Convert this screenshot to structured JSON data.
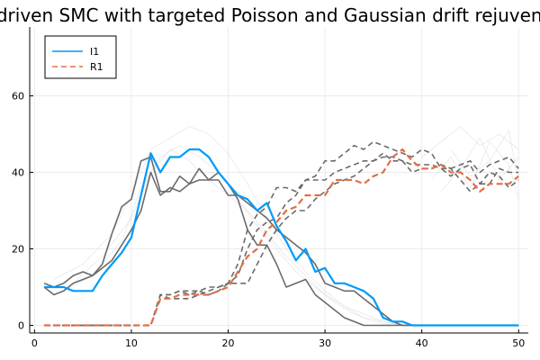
{
  "chart_data": {
    "type": "line",
    "title": "Data-driven SMC with targeted Poisson and Gaussian drift rejuvenation",
    "xlabel": "",
    "ylabel": "",
    "xlim": [
      -0.5,
      51
    ],
    "ylim": [
      -2,
      78
    ],
    "x_ticks": [
      0,
      10,
      20,
      30,
      40,
      50
    ],
    "y_ticks": [
      0,
      20,
      40,
      60
    ],
    "grid": true,
    "legend_position": "top-left",
    "colors": {
      "I1": "#009af9",
      "R1": "#e26f46",
      "samples": "#6b6b6b",
      "faint": "#d9d9d9",
      "grid": "#ebebeb",
      "axis": "#000000"
    },
    "series": [
      {
        "name": "I1",
        "style": "solid",
        "x": [
          1,
          2,
          3,
          4,
          5,
          6,
          7,
          8,
          9,
          10,
          11,
          12,
          13,
          14,
          15,
          16,
          17,
          18,
          19,
          20,
          21,
          22,
          23,
          24,
          25,
          26,
          27,
          28,
          29,
          30,
          31,
          32,
          33,
          34,
          35,
          36,
          37,
          38,
          39,
          40,
          41,
          42,
          43,
          44,
          45,
          46,
          47,
          48,
          49,
          50
        ],
        "values": [
          10,
          10,
          10,
          9,
          9,
          9,
          13,
          16,
          19,
          23,
          34,
          45,
          40,
          44,
          44,
          46,
          46,
          44,
          40,
          37,
          34,
          33,
          30,
          32,
          26,
          22,
          17,
          20,
          14,
          15,
          11,
          11,
          10,
          9,
          7,
          2,
          1,
          1,
          0,
          0,
          0,
          0,
          0,
          0,
          0,
          0,
          0,
          0,
          0,
          0
        ]
      },
      {
        "name": "R1",
        "style": "dashed",
        "x": [
          1,
          2,
          3,
          4,
          5,
          6,
          7,
          8,
          9,
          10,
          11,
          12,
          13,
          14,
          15,
          16,
          17,
          18,
          19,
          20,
          21,
          22,
          23,
          24,
          25,
          26,
          27,
          28,
          29,
          30,
          31,
          32,
          33,
          34,
          35,
          36,
          37,
          38,
          39,
          40,
          41,
          42,
          43,
          44,
          45,
          46,
          47,
          48,
          49,
          50
        ],
        "values": [
          0,
          0,
          0,
          0,
          0,
          0,
          0,
          0,
          0,
          0,
          0,
          0,
          7,
          7,
          8,
          8,
          8,
          8,
          9,
          10,
          14,
          18,
          20,
          25,
          27,
          30,
          31,
          34,
          34,
          34,
          38,
          38,
          38,
          37,
          39,
          40,
          44,
          46,
          43,
          41,
          41,
          42,
          40,
          40,
          38,
          35,
          37,
          37,
          37,
          39
        ]
      }
    ],
    "sample_traces": [
      {
        "style": "solid",
        "x": [
          1,
          2,
          3,
          4,
          5,
          6,
          7,
          8,
          9,
          10,
          11,
          12,
          13,
          14,
          15,
          16,
          17,
          18,
          19,
          20,
          21,
          22,
          23,
          24,
          25,
          26,
          27,
          28,
          29,
          30,
          31,
          32,
          33,
          34,
          35,
          36,
          37,
          38,
          39,
          40,
          41,
          42,
          43,
          44,
          45,
          46,
          47,
          48,
          49,
          50
        ],
        "values": [
          11,
          10,
          11,
          13,
          14,
          13,
          16,
          24,
          31,
          33,
          43,
          44,
          35,
          35,
          39,
          37,
          38,
          38,
          40,
          37,
          33,
          25,
          21,
          21,
          16,
          10,
          11,
          12,
          8,
          6,
          4,
          2,
          1,
          0,
          0,
          0,
          0,
          0,
          0,
          0,
          0,
          0,
          0,
          0,
          0,
          0,
          0,
          0,
          0,
          0
        ]
      },
      {
        "style": "solid",
        "x": [
          1,
          2,
          3,
          4,
          5,
          6,
          7,
          8,
          9,
          10,
          11,
          12,
          13,
          14,
          15,
          16,
          17,
          18,
          19,
          20,
          21,
          22,
          23,
          24,
          25,
          26,
          27,
          28,
          29,
          30,
          31,
          32,
          33,
          34,
          35,
          36,
          37,
          38,
          39,
          40,
          41,
          42,
          43,
          44,
          45,
          46,
          47,
          48,
          49,
          50
        ],
        "values": [
          10,
          8,
          9,
          11,
          12,
          13,
          15,
          17,
          21,
          25,
          30,
          40,
          34,
          36,
          35,
          37,
          41,
          38,
          38,
          34,
          34,
          32,
          30,
          28,
          25,
          23,
          21,
          19,
          16,
          11,
          10,
          9,
          9,
          7,
          5,
          3,
          1,
          0,
          0,
          0,
          0,
          0,
          0,
          0,
          0,
          0,
          0,
          0,
          0,
          0
        ]
      },
      {
        "style": "dashed",
        "x": [
          1,
          2,
          3,
          4,
          5,
          6,
          7,
          8,
          9,
          10,
          11,
          12,
          13,
          14,
          15,
          16,
          17,
          18,
          19,
          20,
          21,
          22,
          23,
          24,
          25,
          26,
          27,
          28,
          29,
          30,
          31,
          32,
          33,
          34,
          35,
          36,
          37,
          38,
          39,
          40,
          41,
          42,
          43,
          44,
          45,
          46,
          47,
          48,
          49,
          50
        ],
        "values": [
          0,
          0,
          0,
          0,
          0,
          0,
          0,
          0,
          0,
          0,
          0,
          0,
          8,
          8,
          9,
          9,
          9,
          10,
          10,
          11,
          16,
          25,
          29,
          31,
          36,
          36,
          35,
          38,
          39,
          43,
          43,
          45,
          47,
          46,
          48,
          47,
          46,
          45,
          44,
          46,
          45,
          41,
          39,
          41,
          42,
          37,
          40,
          39,
          36,
          38
        ]
      },
      {
        "style": "dashed",
        "x": [
          1,
          2,
          3,
          4,
          5,
          6,
          7,
          8,
          9,
          10,
          11,
          12,
          13,
          14,
          15,
          16,
          17,
          18,
          19,
          20,
          21,
          22,
          23,
          24,
          25,
          26,
          27,
          28,
          29,
          30,
          31,
          32,
          33,
          34,
          35,
          36,
          37,
          38,
          39,
          40,
          41,
          42,
          43,
          44,
          45,
          46,
          47,
          48,
          49,
          50
        ],
        "values": [
          0,
          0,
          0,
          0,
          0,
          0,
          0,
          0,
          0,
          0,
          0,
          0,
          8,
          7,
          7,
          7,
          8,
          9,
          10,
          11,
          13,
          20,
          25,
          27,
          28,
          32,
          34,
          38,
          38,
          38,
          40,
          41,
          42,
          43,
          43,
          45,
          43,
          43,
          40,
          41,
          41,
          42,
          41,
          38,
          35,
          37,
          37,
          41,
          40,
          40
        ]
      },
      {
        "style": "dashed",
        "x": [
          1,
          2,
          3,
          4,
          5,
          6,
          7,
          8,
          9,
          10,
          11,
          12,
          13,
          14,
          15,
          16,
          17,
          18,
          19,
          20,
          21,
          22,
          23,
          24,
          25,
          26,
          27,
          28,
          29,
          30,
          31,
          32,
          33,
          34,
          35,
          36,
          37,
          38,
          39,
          40,
          41,
          42,
          43,
          44,
          45,
          46,
          47,
          48,
          49,
          50
        ],
        "values": [
          0,
          0,
          0,
          0,
          0,
          0,
          0,
          0,
          0,
          0,
          0,
          0,
          8,
          8,
          9,
          8,
          9,
          8,
          9,
          11,
          11,
          11,
          16,
          21,
          25,
          28,
          30,
          30,
          33,
          35,
          37,
          38,
          39,
          41,
          43,
          44,
          44,
          43,
          42,
          42,
          42,
          41,
          41,
          42,
          43,
          40,
          42,
          43,
          44,
          41
        ]
      }
    ],
    "faint_traces": [
      {
        "x": [
          2,
          5,
          8,
          10,
          12,
          14,
          16,
          18,
          20,
          22,
          24,
          26,
          28,
          30,
          32,
          34,
          36,
          38,
          40
        ],
        "values": [
          12,
          16,
          24,
          34,
          46,
          49,
          52,
          50,
          45,
          37,
          28,
          20,
          14,
          9,
          5,
          3,
          1,
          0,
          0
        ]
      },
      {
        "x": [
          3,
          6,
          9,
          11,
          13,
          15,
          17,
          19,
          21,
          23,
          25,
          27,
          29,
          31,
          33,
          35,
          37,
          39
        ],
        "values": [
          9,
          13,
          22,
          36,
          44,
          47,
          44,
          40,
          33,
          26,
          20,
          14,
          10,
          6,
          3,
          1,
          0,
          0
        ]
      },
      {
        "x": [
          4,
          7,
          10,
          12,
          14,
          16,
          18,
          20,
          22,
          24,
          26,
          28,
          30,
          32,
          34,
          36,
          38
        ],
        "values": [
          11,
          18,
          28,
          40,
          46,
          43,
          38,
          34,
          30,
          24,
          18,
          13,
          8,
          5,
          2,
          1,
          0
        ]
      },
      {
        "x": [
          40,
          42,
          44,
          46,
          48,
          50
        ],
        "values": [
          44,
          48,
          52,
          47,
          50,
          46
        ]
      },
      {
        "x": [
          41,
          43,
          45,
          47,
          49,
          50
        ],
        "values": [
          38,
          44,
          36,
          48,
          42,
          33
        ]
      },
      {
        "x": [
          42,
          44,
          46,
          48,
          50
        ],
        "values": [
          35,
          41,
          49,
          38,
          44
        ]
      },
      {
        "x": [
          43,
          45,
          47,
          49,
          50
        ],
        "values": [
          46,
          39,
          43,
          51,
          37
        ]
      }
    ],
    "legend": [
      {
        "label": "I1",
        "style": "solid"
      },
      {
        "label": "R1",
        "style": "dashed"
      }
    ]
  }
}
